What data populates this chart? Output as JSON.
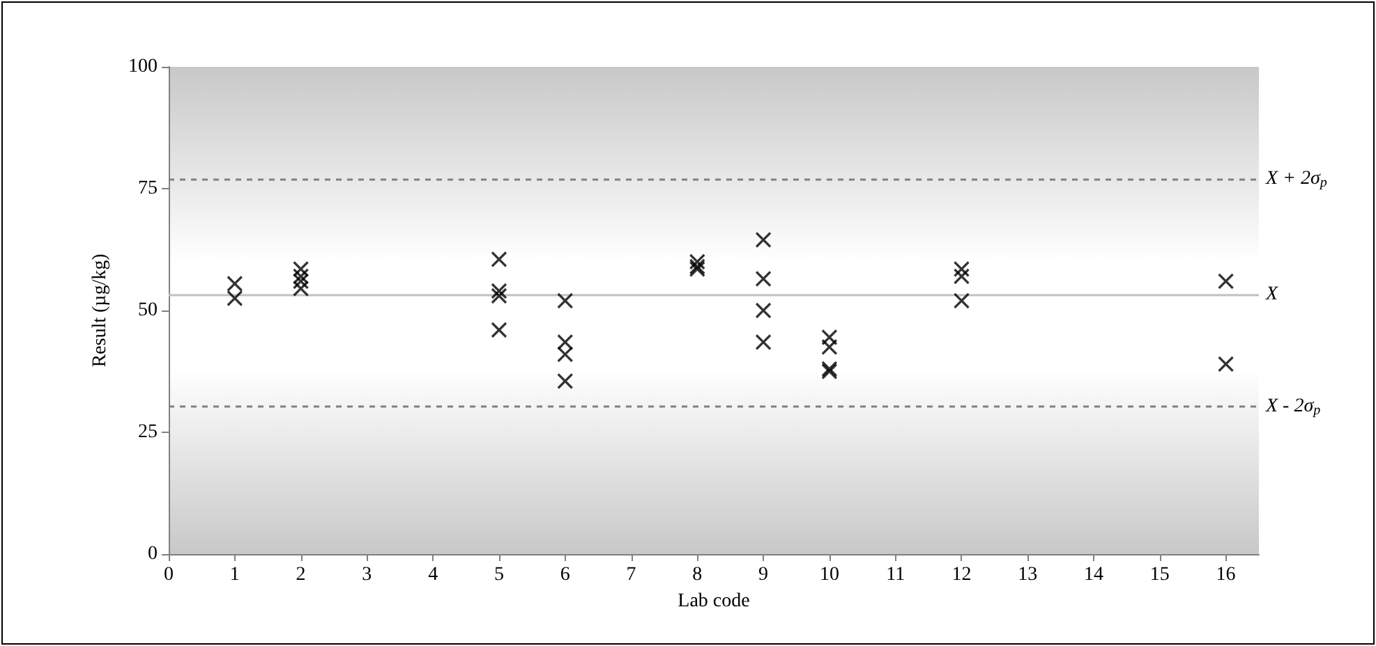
{
  "chart_data": {
    "type": "scatter",
    "xlabel": "Lab code",
    "ylabel": "Result (µg/kg)",
    "x": [
      1,
      1,
      2,
      2,
      2,
      2,
      5,
      5,
      5,
      5,
      6,
      6,
      6,
      6,
      8,
      8,
      8,
      9,
      9,
      9,
      9,
      10,
      10,
      10,
      10,
      12,
      12,
      12,
      16,
      16
    ],
    "series": [
      {
        "color": "#000000",
        "values": [
          55.5,
          52.5,
          58.5,
          57,
          56,
          54.5,
          60.5,
          54,
          53,
          46,
          52,
          43.5,
          41,
          35.5,
          60,
          59,
          58.5,
          64.5,
          56.5,
          50,
          43.5,
          44.5,
          42.5,
          38,
          37.5,
          58.5,
          57,
          52,
          56,
          39
        ]
      }
    ],
    "xlim": [
      0,
      16.5
    ],
    "xticks": [
      0,
      1,
      2,
      3,
      4,
      5,
      6,
      7,
      8,
      9,
      10,
      11,
      12,
      13,
      14,
      15,
      16
    ],
    "ylim": [
      0,
      100
    ],
    "yticks": [
      0,
      25,
      50,
      75,
      100
    ],
    "marker": "cross",
    "grid": false,
    "ref_lines": [
      {
        "axis": "y",
        "value": 77,
        "label": "X + 2σ$_{p}$",
        "color": "#808080",
        "line_style": "dashed"
      },
      {
        "axis": "y",
        "value": 53.3,
        "label": "X",
        "color": "#c0c0c0",
        "line_style": "solid"
      },
      {
        "axis": "y",
        "value": 30.3,
        "label": "X - 2σ$_{p}$",
        "color": "#808080",
        "line_style": "dashed"
      }
    ]
  }
}
